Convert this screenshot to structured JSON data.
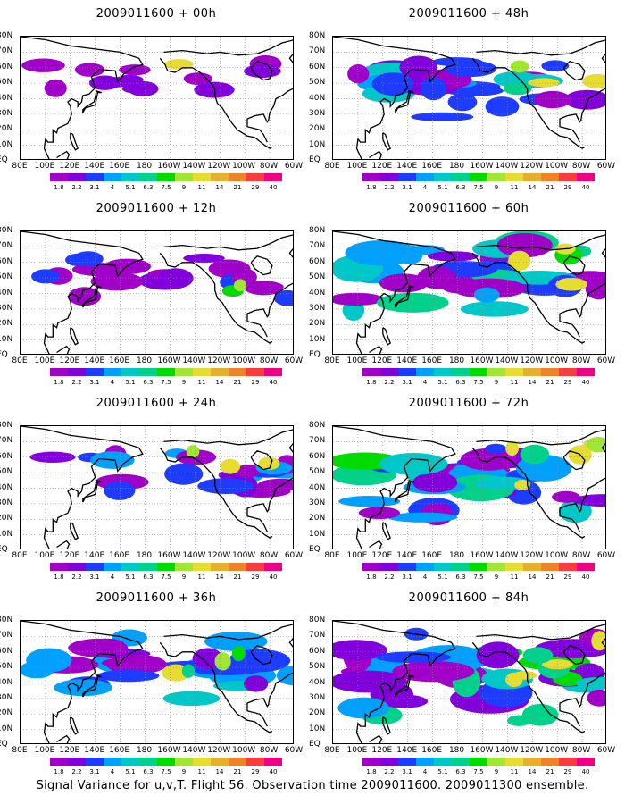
{
  "caption": "Signal Variance for u,v,T. Flight 56. Observation time 2009011600. 2009011300 ensemble.",
  "panels": [
    {
      "title": "2009011600 + 00h",
      "coverage": 0.1
    },
    {
      "title": "2009011600 + 48h",
      "coverage": 0.55
    },
    {
      "title": "2009011600 + 12h",
      "coverage": 0.25
    },
    {
      "title": "2009011600 + 60h",
      "coverage": 0.65
    },
    {
      "title": "2009011600 + 24h",
      "coverage": 0.38
    },
    {
      "title": "2009011600 + 72h",
      "coverage": 0.75
    },
    {
      "title": "2009011600 + 36h",
      "coverage": 0.48
    },
    {
      "title": "2009011600 + 84h",
      "coverage": 0.85
    }
  ],
  "lat_labels": [
    "80N",
    "70N",
    "60N",
    "50N",
    "40N",
    "30N",
    "20N",
    "10N",
    "EQ"
  ],
  "lon_labels": [
    "80E",
    "100E",
    "120E",
    "140E",
    "160E",
    "180",
    "160W",
    "140W",
    "120W",
    "100W",
    "80W",
    "60W"
  ],
  "colorbar_labels": [
    "1.8",
    "2.2",
    "3.1",
    "4",
    "5.1",
    "6.3",
    "7.5",
    "9",
    "11",
    "14",
    "21",
    "29",
    "40"
  ],
  "colorbar_colors": [
    "#a000c8",
    "#8200dc",
    "#1e3cff",
    "#00a0ff",
    "#00c8c8",
    "#00d28c",
    "#00dc00",
    "#a0e632",
    "#e6dc32",
    "#e6af2d",
    "#f08228",
    "#fa3c3c",
    "#f00082"
  ]
}
